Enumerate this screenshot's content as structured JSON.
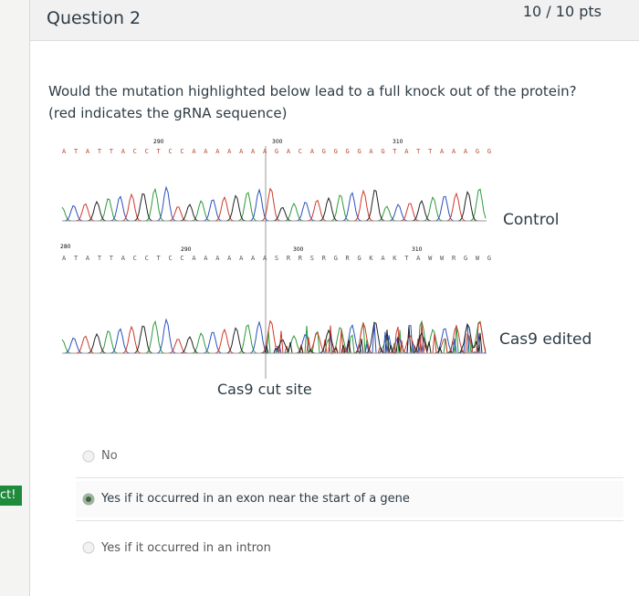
{
  "header": {
    "title": "Question 2",
    "points": "10 / 10 pts"
  },
  "side_tag": "ct!",
  "question": "Would the mutation highlighted below lead to a full knock out of the protein? (red indicates the gRNA sequence)",
  "figure": {
    "control_sequence": "ATATTACCTCCAAAAAAAGACAGGGGAGTATTAAAGG",
    "control_positions": [
      "290",
      "300",
      "310"
    ],
    "control_label": "Control",
    "edited_sequence": "ATATTACCTCCAAAAAAASRRSRGRGKAKTAWWRGWG",
    "edited_positions": [
      "280",
      "290",
      "300",
      "310"
    ],
    "edited_label": "Cas9 edited",
    "cut_label": "Cas9 cut site"
  },
  "answers": [
    "No",
    "Yes if it occurred in an exon near the start of a gene",
    "Yes if it occurred in an intron"
  ]
}
